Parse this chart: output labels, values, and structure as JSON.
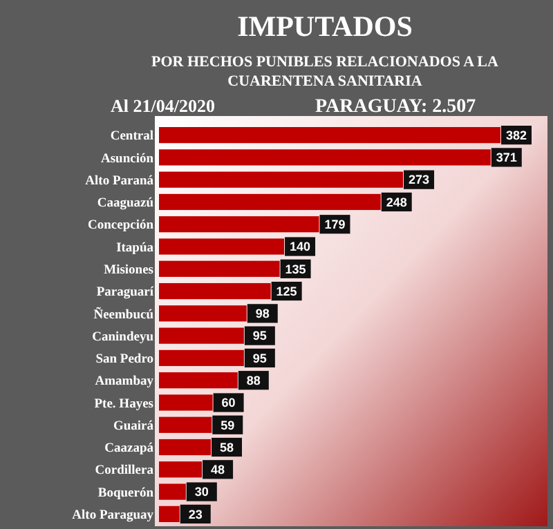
{
  "chart_data": {
    "type": "bar",
    "orientation": "horizontal",
    "title": "IMPUTADOS",
    "subtitle": "POR HECHOS PUNIBLES RELACIONADOS A LA CUARENTENA SANITARIA",
    "annotations": [
      "Al 21/04/2020",
      "PARAGUAY: 2.507"
    ],
    "categories": [
      "Central",
      "Asunción",
      "Alto Paraná",
      "Caaguazú",
      "Concepción",
      "Itapúa",
      "Misiones",
      "Paraguarí",
      "Ñeembucú",
      "Canindeyu",
      "San Pedro",
      "Amambay",
      "Pte. Hayes",
      "Guairá",
      "Caazapá",
      "Cordillera",
      "Boquerón",
      "Alto Paraguay"
    ],
    "values": [
      382,
      371,
      273,
      248,
      179,
      140,
      135,
      125,
      98,
      95,
      95,
      88,
      60,
      59,
      58,
      48,
      30,
      23
    ],
    "color": "#c00000",
    "data_labels": true
  }
}
